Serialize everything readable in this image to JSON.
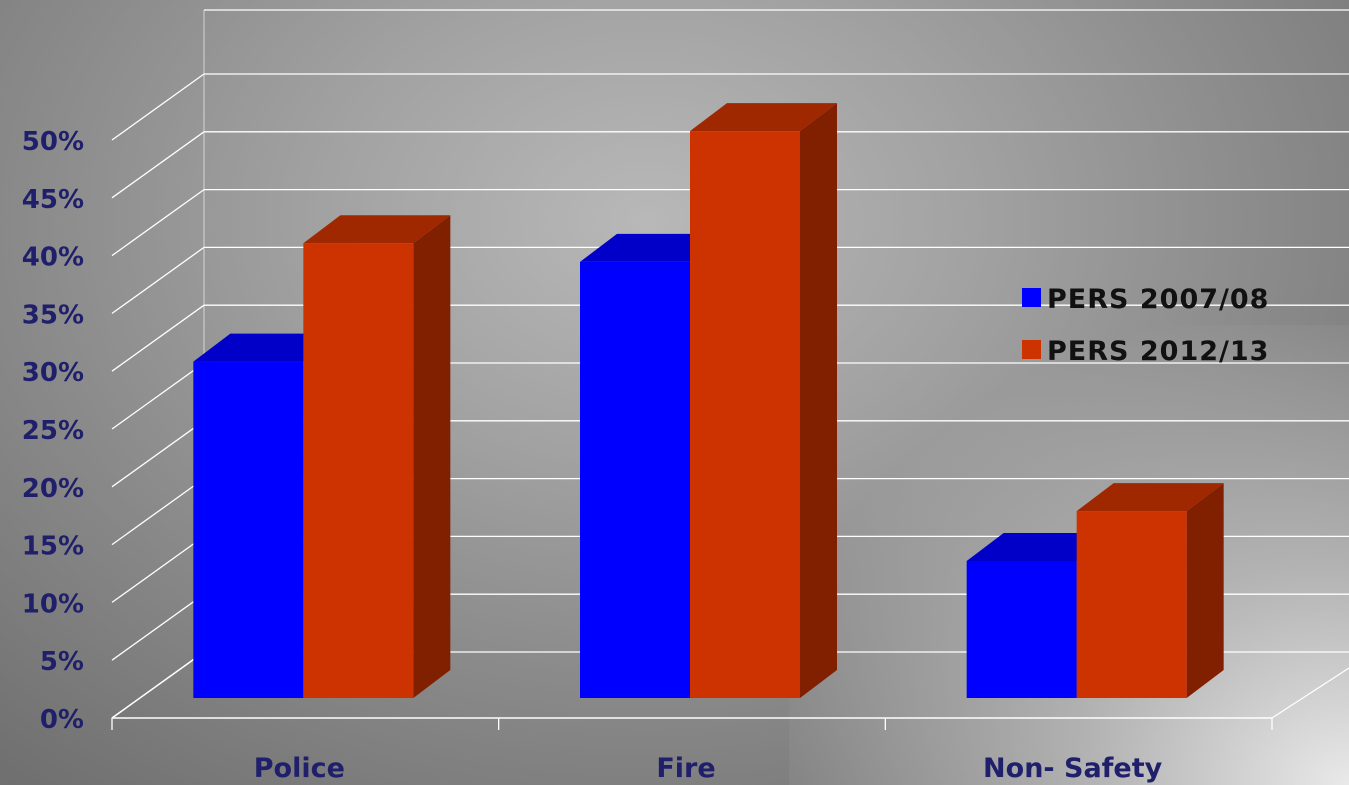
{
  "chart_data": {
    "type": "bar",
    "title": "",
    "xlabel": "",
    "ylabel": "",
    "categories": [
      "Police",
      "Fire",
      "Non- Safety"
    ],
    "series": [
      {
        "name": "PERS 2007/08",
        "values": [
          27,
          35,
          11
        ],
        "color": "#0000ff",
        "top_color": "#0000c8",
        "side_color": "#0000a0"
      },
      {
        "name": "PERS 2012/13",
        "values": [
          36.5,
          45.5,
          15
        ],
        "color": "#cc3300",
        "top_color": "#a02800",
        "side_color": "#802000"
      }
    ],
    "ylim": [
      0,
      50
    ],
    "yticks": [
      0,
      5,
      10,
      15,
      20,
      25,
      30,
      35,
      40,
      45,
      50
    ],
    "ytick_format": "percent",
    "grid": true,
    "legend": "right",
    "style": "3d-column",
    "text_color": "#1f1f6b",
    "grid_color": "#ffffff"
  }
}
